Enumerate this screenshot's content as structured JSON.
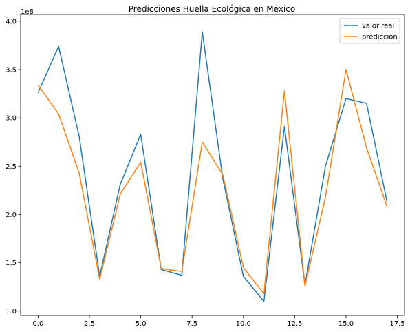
{
  "chart_data": {
    "type": "line",
    "title": "Predicciones Huella Ecológica en México",
    "xlabel": "",
    "ylabel": "",
    "y_offset_label": "1e8",
    "x": [
      0,
      1,
      2,
      3,
      4,
      5,
      6,
      7,
      8,
      9,
      10,
      11,
      12,
      13,
      14,
      15,
      16,
      17
    ],
    "xlim": [
      -0.85,
      17.85
    ],
    "ylim": [
      0.955,
      4.07
    ],
    "x_ticks": [
      0,
      2.5,
      5,
      7.5,
      10,
      12.5,
      15,
      17.5
    ],
    "x_tick_labels": [
      "0.0",
      "2.5",
      "5.0",
      "7.5",
      "10.0",
      "12.5",
      "15.0",
      "17.5"
    ],
    "y_ticks": [
      1.0,
      1.5,
      2.0,
      2.5,
      3.0,
      3.5,
      4.0
    ],
    "y_tick_labels": [
      "1.0",
      "1.5",
      "2.0",
      "2.5",
      "3.0",
      "3.5",
      "4.0"
    ],
    "grid": false,
    "legend_position": "top-right",
    "series": [
      {
        "name": "valor real",
        "color": "#1f77b4",
        "values": [
          3.26,
          3.74,
          2.81,
          1.36,
          2.31,
          2.83,
          1.43,
          1.37,
          3.89,
          2.37,
          1.36,
          1.1,
          2.91,
          1.27,
          2.5,
          3.2,
          3.15,
          2.13
        ]
      },
      {
        "name": "prediccion",
        "color": "#ff7f0e",
        "values": [
          3.34,
          3.04,
          2.43,
          1.33,
          2.21,
          2.54,
          1.44,
          1.41,
          2.75,
          2.41,
          1.45,
          1.18,
          3.28,
          1.26,
          2.18,
          3.5,
          2.69,
          2.08
        ]
      }
    ]
  }
}
